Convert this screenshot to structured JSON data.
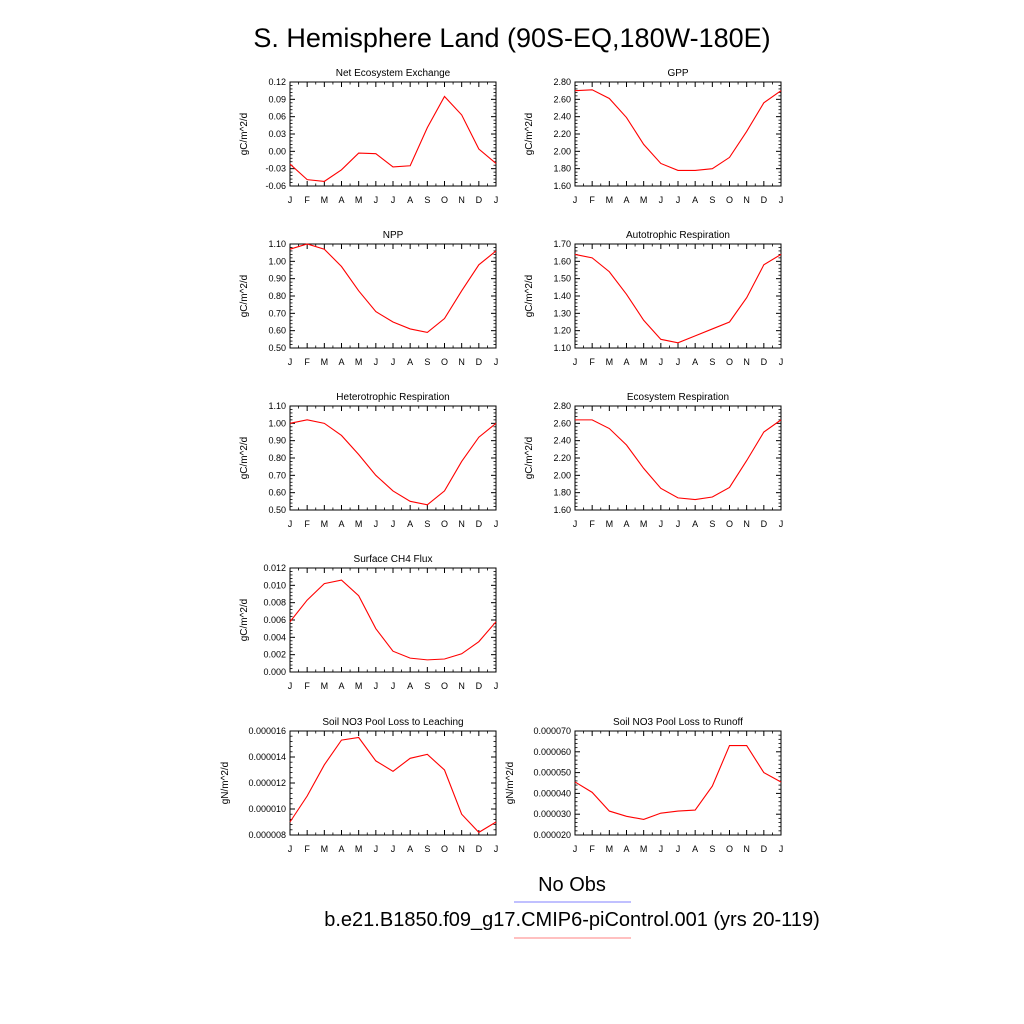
{
  "figure": {
    "title": "S. Hemisphere Land (90S-EQ,180W-180E)",
    "legend": [
      {
        "label": "No Obs",
        "color": "#8080ff"
      },
      {
        "label": "b.e21.B1850.f09_g17.CMIP6-piControl.001 (yrs 20-119)",
        "color": "#ff8080"
      }
    ],
    "line_color": "#ff0000"
  },
  "chart_data": [
    {
      "type": "line",
      "title": "Net Ecosystem Exchange",
      "ylabel": "gC/m^2/d",
      "categories": [
        "J",
        "F",
        "M",
        "A",
        "M",
        "J",
        "J",
        "A",
        "S",
        "O",
        "N",
        "D",
        "J"
      ],
      "yticks": [
        "-0.06",
        "-0.03",
        "0.00",
        "0.03",
        "0.06",
        "0.09",
        "0.12"
      ],
      "ylim": [
        -0.06,
        0.12
      ],
      "series": [
        {
          "values": [
            -0.022,
            -0.049,
            -0.052,
            -0.032,
            -0.003,
            -0.004,
            -0.027,
            -0.025,
            0.041,
            0.095,
            0.063,
            0.004,
            -0.021
          ]
        }
      ]
    },
    {
      "type": "line",
      "title": "GPP",
      "ylabel": "gC/m^2/d",
      "categories": [
        "J",
        "F",
        "M",
        "A",
        "M",
        "J",
        "J",
        "A",
        "S",
        "O",
        "N",
        "D",
        "J"
      ],
      "yticks": [
        "1.60",
        "1.80",
        "2.00",
        "2.20",
        "2.40",
        "2.60",
        "2.80"
      ],
      "ylim": [
        1.6,
        2.8
      ],
      "series": [
        {
          "values": [
            2.7,
            2.71,
            2.61,
            2.39,
            2.08,
            1.86,
            1.78,
            1.78,
            1.8,
            1.93,
            2.23,
            2.56,
            2.7
          ]
        }
      ]
    },
    {
      "type": "line",
      "title": "NPP",
      "ylabel": "gC/m^2/d",
      "categories": [
        "J",
        "F",
        "M",
        "A",
        "M",
        "J",
        "J",
        "A",
        "S",
        "O",
        "N",
        "D",
        "J"
      ],
      "yticks": [
        "0.50",
        "0.60",
        "0.70",
        "0.80",
        "0.90",
        "1.00",
        "1.10"
      ],
      "ylim": [
        0.5,
        1.1
      ],
      "series": [
        {
          "values": [
            1.07,
            1.1,
            1.07,
            0.97,
            0.83,
            0.71,
            0.65,
            0.61,
            0.59,
            0.67,
            0.83,
            0.98,
            1.06
          ]
        }
      ]
    },
    {
      "type": "line",
      "title": "Autotrophic Respiration",
      "ylabel": "gC/m^2/d",
      "categories": [
        "J",
        "F",
        "M",
        "A",
        "M",
        "J",
        "J",
        "A",
        "S",
        "O",
        "N",
        "D",
        "J"
      ],
      "yticks": [
        "1.10",
        "1.20",
        "1.30",
        "1.40",
        "1.50",
        "1.60",
        "1.70"
      ],
      "ylim": [
        1.1,
        1.7
      ],
      "series": [
        {
          "values": [
            1.64,
            1.62,
            1.54,
            1.41,
            1.26,
            1.15,
            1.13,
            1.17,
            1.21,
            1.25,
            1.39,
            1.58,
            1.64
          ]
        }
      ]
    },
    {
      "type": "line",
      "title": "Heterotrophic Respiration",
      "ylabel": "gC/m^2/d",
      "categories": [
        "J",
        "F",
        "M",
        "A",
        "M",
        "J",
        "J",
        "A",
        "S",
        "O",
        "N",
        "D",
        "J"
      ],
      "yticks": [
        "0.50",
        "0.60",
        "0.70",
        "0.80",
        "0.90",
        "1.00",
        "1.10"
      ],
      "ylim": [
        0.5,
        1.1
      ],
      "series": [
        {
          "values": [
            1.0,
            1.02,
            1.0,
            0.93,
            0.82,
            0.7,
            0.61,
            0.55,
            0.53,
            0.61,
            0.78,
            0.92,
            1.0
          ]
        }
      ]
    },
    {
      "type": "line",
      "title": "Ecosystem Respiration",
      "ylabel": "gC/m^2/d",
      "categories": [
        "J",
        "F",
        "M",
        "A",
        "M",
        "J",
        "J",
        "A",
        "S",
        "O",
        "N",
        "D",
        "J"
      ],
      "yticks": [
        "1.60",
        "1.80",
        "2.00",
        "2.20",
        "2.40",
        "2.60",
        "2.80"
      ],
      "ylim": [
        1.6,
        2.8
      ],
      "series": [
        {
          "values": [
            2.64,
            2.64,
            2.54,
            2.35,
            2.08,
            1.85,
            1.74,
            1.72,
            1.75,
            1.86,
            2.17,
            2.5,
            2.64
          ]
        }
      ]
    },
    {
      "type": "line",
      "title": "Surface CH4 Flux",
      "ylabel": "gC/m^2/d",
      "categories": [
        "J",
        "F",
        "M",
        "A",
        "M",
        "J",
        "J",
        "A",
        "S",
        "O",
        "N",
        "D",
        "J"
      ],
      "yticks": [
        "0.000",
        "0.002",
        "0.004",
        "0.006",
        "0.008",
        "0.010",
        "0.012"
      ],
      "ylim": [
        0,
        0.012
      ],
      "series": [
        {
          "values": [
            0.0058,
            0.0083,
            0.0102,
            0.0106,
            0.0088,
            0.005,
            0.0024,
            0.0016,
            0.0014,
            0.0015,
            0.0021,
            0.0035,
            0.0058
          ]
        }
      ]
    },
    {
      "type": "line",
      "title": "Soil NO3 Pool Loss to Leaching",
      "ylabel": "gN/m^2/d",
      "categories": [
        "J",
        "F",
        "M",
        "A",
        "M",
        "J",
        "J",
        "A",
        "S",
        "O",
        "N",
        "D",
        "J"
      ],
      "yticks": [
        "0.000008",
        "0.000010",
        "0.000012",
        "0.000014",
        "0.000016"
      ],
      "ylim": [
        8e-06,
        1.6e-05
      ],
      "series": [
        {
          "values": [
            9e-06,
            1.1e-05,
            1.34e-05,
            1.53e-05,
            1.55e-05,
            1.37e-05,
            1.29e-05,
            1.39e-05,
            1.42e-05,
            1.3e-05,
            9.6e-06,
            8.2e-06,
            9e-06
          ]
        }
      ]
    },
    {
      "type": "line",
      "title": "Soil NO3 Pool Loss to Runoff",
      "ylabel": "gN/m^2/d",
      "categories": [
        "J",
        "F",
        "M",
        "A",
        "M",
        "J",
        "J",
        "A",
        "S",
        "O",
        "N",
        "D",
        "J"
      ],
      "yticks": [
        "0.000020",
        "0.000030",
        "0.000040",
        "0.000050",
        "0.000060",
        "0.000070"
      ],
      "ylim": [
        2e-05,
        7e-05
      ],
      "series": [
        {
          "values": [
            4.55e-05,
            4.05e-05,
            3.15e-05,
            2.9e-05,
            2.75e-05,
            3.05e-05,
            3.15e-05,
            3.2e-05,
            4.35e-05,
            6.3e-05,
            6.3e-05,
            5e-05,
            4.55e-05
          ]
        }
      ]
    }
  ]
}
